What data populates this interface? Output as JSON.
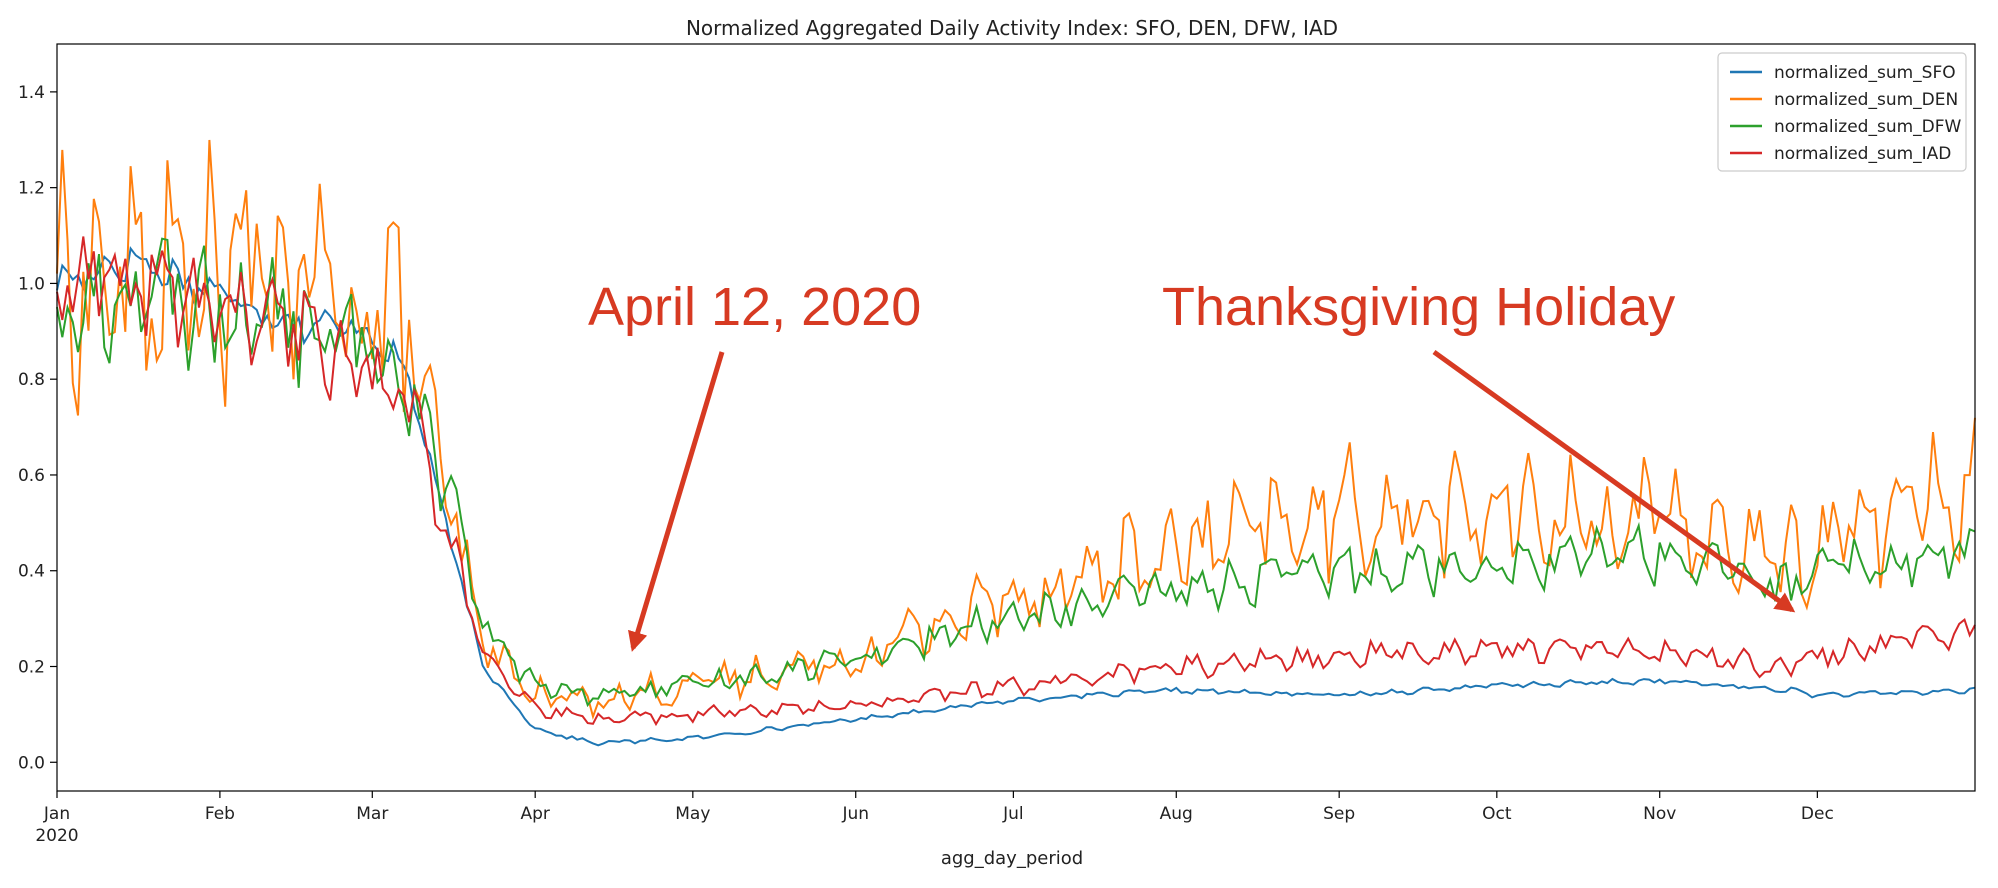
{
  "chart_data": {
    "type": "line",
    "title": "Normalized Aggregated Daily Activity Index: SFO, DEN, DFW, IAD",
    "xlabel": "agg_day_period",
    "ylabel": "",
    "x_start": "2020-01-01",
    "x_end": "2020-12-31",
    "ylim": [
      -0.06,
      1.5
    ],
    "yticks": [
      0.0,
      0.2,
      0.4,
      0.6,
      0.8,
      1.0,
      1.2,
      1.4
    ],
    "ytick_labels": [
      "0.0",
      "0.2",
      "0.4",
      "0.6",
      "0.8",
      "1.0",
      "1.2",
      "1.4"
    ],
    "xticks": [
      {
        "date": "2020-01-01",
        "label": "Jan",
        "sublabel": "2020"
      },
      {
        "date": "2020-02-01",
        "label": "Feb"
      },
      {
        "date": "2020-03-01",
        "label": "Mar"
      },
      {
        "date": "2020-04-01",
        "label": "Apr"
      },
      {
        "date": "2020-05-01",
        "label": "May"
      },
      {
        "date": "2020-06-01",
        "label": "Jun"
      },
      {
        "date": "2020-07-01",
        "label": "Jul"
      },
      {
        "date": "2020-08-01",
        "label": "Aug"
      },
      {
        "date": "2020-09-01",
        "label": "Sep"
      },
      {
        "date": "2020-10-01",
        "label": "Oct"
      },
      {
        "date": "2020-11-01",
        "label": "Nov"
      },
      {
        "date": "2020-12-01",
        "label": "Dec"
      }
    ],
    "grid": false,
    "legend_position": "top-right",
    "series": [
      {
        "name": "normalized_sum_SFO",
        "color": "#1f77b4",
        "weekly_amplitude": 0.02,
        "points": [
          [
            "2020-01-01",
            1.0
          ],
          [
            "2020-01-15",
            1.05
          ],
          [
            "2020-02-01",
            0.98
          ],
          [
            "2020-02-15",
            0.92
          ],
          [
            "2020-03-01",
            0.9
          ],
          [
            "2020-03-08",
            0.8
          ],
          [
            "2020-03-15",
            0.5
          ],
          [
            "2020-03-22",
            0.2
          ],
          [
            "2020-04-01",
            0.07
          ],
          [
            "2020-04-12",
            0.04
          ],
          [
            "2020-05-01",
            0.05
          ],
          [
            "2020-06-01",
            0.09
          ],
          [
            "2020-07-01",
            0.13
          ],
          [
            "2020-08-01",
            0.15
          ],
          [
            "2020-09-01",
            0.14
          ],
          [
            "2020-10-01",
            0.16
          ],
          [
            "2020-11-01",
            0.17
          ],
          [
            "2020-11-26",
            0.15
          ],
          [
            "2020-12-01",
            0.14
          ],
          [
            "2020-12-31",
            0.15
          ]
        ]
      },
      {
        "name": "normalized_sum_DEN",
        "color": "#ff7f0e",
        "weekly_amplitude": 0.12,
        "points": [
          [
            "2020-01-01",
            1.0
          ],
          [
            "2020-01-15",
            1.0
          ],
          [
            "2020-02-01",
            1.02
          ],
          [
            "2020-02-15",
            1.0
          ],
          [
            "2020-03-01",
            0.95
          ],
          [
            "2020-03-08",
            0.92
          ],
          [
            "2020-03-15",
            0.55
          ],
          [
            "2020-03-22",
            0.25
          ],
          [
            "2020-04-01",
            0.14
          ],
          [
            "2020-04-12",
            0.13
          ],
          [
            "2020-05-01",
            0.16
          ],
          [
            "2020-06-01",
            0.22
          ],
          [
            "2020-07-01",
            0.35
          ],
          [
            "2020-08-01",
            0.44
          ],
          [
            "2020-09-01",
            0.52
          ],
          [
            "2020-10-01",
            0.52
          ],
          [
            "2020-11-01",
            0.5
          ],
          [
            "2020-11-26",
            0.42
          ],
          [
            "2020-12-01",
            0.46
          ],
          [
            "2020-12-31",
            0.58
          ]
        ]
      },
      {
        "name": "normalized_sum_DFW",
        "color": "#2ca02c",
        "weekly_amplitude": 0.07,
        "points": [
          [
            "2020-01-01",
            0.92
          ],
          [
            "2020-01-15",
            0.98
          ],
          [
            "2020-02-01",
            0.95
          ],
          [
            "2020-02-15",
            0.92
          ],
          [
            "2020-03-01",
            0.85
          ],
          [
            "2020-03-08",
            0.8
          ],
          [
            "2020-03-15",
            0.6
          ],
          [
            "2020-03-22",
            0.28
          ],
          [
            "2020-04-01",
            0.16
          ],
          [
            "2020-04-12",
            0.14
          ],
          [
            "2020-05-01",
            0.16
          ],
          [
            "2020-06-01",
            0.22
          ],
          [
            "2020-07-01",
            0.3
          ],
          [
            "2020-08-01",
            0.36
          ],
          [
            "2020-09-01",
            0.4
          ],
          [
            "2020-10-01",
            0.42
          ],
          [
            "2020-11-01",
            0.44
          ],
          [
            "2020-11-26",
            0.36
          ],
          [
            "2020-12-01",
            0.4
          ],
          [
            "2020-12-31",
            0.44
          ]
        ]
      },
      {
        "name": "normalized_sum_IAD",
        "color": "#d62728",
        "weekly_amplitude": 0.06,
        "points": [
          [
            "2020-01-01",
            0.98
          ],
          [
            "2020-01-15",
            1.0
          ],
          [
            "2020-02-01",
            0.95
          ],
          [
            "2020-02-15",
            0.9
          ],
          [
            "2020-03-01",
            0.82
          ],
          [
            "2020-03-08",
            0.75
          ],
          [
            "2020-03-15",
            0.5
          ],
          [
            "2020-03-22",
            0.22
          ],
          [
            "2020-04-01",
            0.11
          ],
          [
            "2020-04-12",
            0.09
          ],
          [
            "2020-05-01",
            0.1
          ],
          [
            "2020-06-01",
            0.12
          ],
          [
            "2020-07-01",
            0.16
          ],
          [
            "2020-08-01",
            0.2
          ],
          [
            "2020-09-01",
            0.22
          ],
          [
            "2020-10-01",
            0.24
          ],
          [
            "2020-11-01",
            0.23
          ],
          [
            "2020-11-26",
            0.2
          ],
          [
            "2020-12-01",
            0.22
          ],
          [
            "2020-12-31",
            0.28
          ]
        ]
      }
    ],
    "annotations": [
      {
        "text": "April 12, 2020",
        "color": "#d73a22",
        "arrow_to": "2020-04-12"
      },
      {
        "text": "Thanksgiving Holiday",
        "color": "#d73a22",
        "arrow_to": "2020-11-26"
      }
    ]
  }
}
